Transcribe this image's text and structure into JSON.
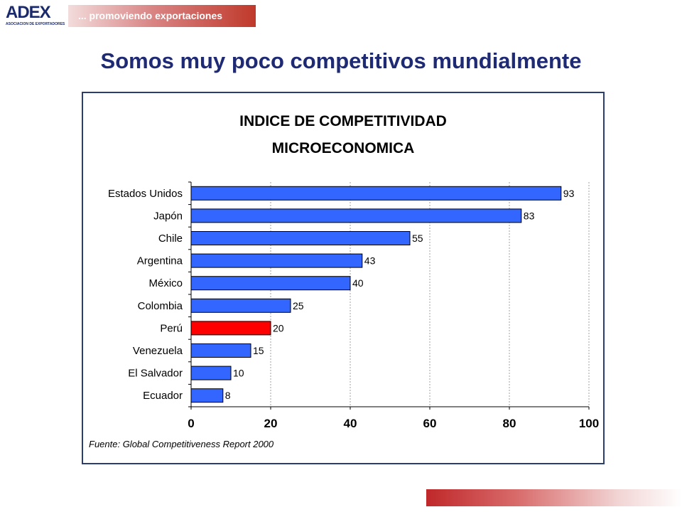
{
  "header": {
    "logo_text": "ADEX",
    "logo_subtext": "ASOCIACION DE EXPORTADORES",
    "tagline": "... promoviendo  exportaciones",
    "title": "Somos muy poco competitivos mundialmente"
  },
  "colors": {
    "bar": "#3366ff",
    "highlight": "#ff0000",
    "title": "#1f2a75",
    "accent": "#c0282a"
  },
  "chart_data": {
    "type": "bar",
    "orientation": "horizontal",
    "title_line1": "INDICE DE COMPETITIVIDAD",
    "title_line2": "MICROECONOMICA",
    "categories": [
      "Estados Unidos",
      "Japón",
      "Chile",
      "Argentina",
      "México",
      "Colombia",
      "Perú",
      "Venezuela",
      "El Salvador",
      "Ecuador"
    ],
    "values": [
      93,
      83,
      55,
      43,
      40,
      25,
      20,
      15,
      10,
      8
    ],
    "highlight": "Perú",
    "xlim": [
      0,
      100
    ],
    "xticks": [
      0,
      20,
      40,
      60,
      80,
      100
    ],
    "grid": true,
    "source": "Fuente: Global Competitiveness Report 2000"
  }
}
